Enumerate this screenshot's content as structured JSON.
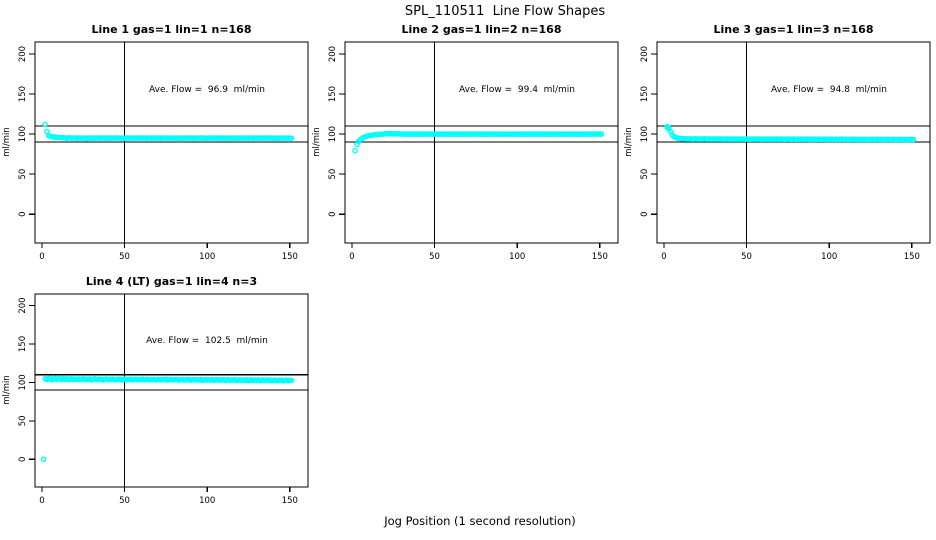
{
  "figure_title": "SPL_110511  Line Flow Shapes",
  "x_axis_label": "Jog Position (1 second resolution)",
  "y_axis_label": "ml/min",
  "colors": {
    "points": "#00ffff",
    "lines": "#000000",
    "text": "#000000",
    "background": "#ffffff"
  },
  "chart_data": [
    {
      "type": "scatter",
      "title": "Line 1 gas=1 lin=1 n=168",
      "n": 168,
      "annotation": "Ave. Flow =  96.9  ml/min",
      "ave_flow_ml_min": 96.9,
      "x_ticks": [
        0,
        50,
        100,
        150
      ],
      "y_ticks": [
        0,
        50,
        100,
        150,
        200
      ],
      "xlim": [
        -4.2,
        161
      ],
      "ylim": [
        -36,
        215
      ],
      "hlines": [
        90,
        110
      ],
      "vline": 50,
      "grid": false,
      "extra_points": [
        [
          2,
          112.2
        ],
        [
          3,
          103.2
        ]
      ],
      "series": {
        "x_start": 4,
        "x_step": 1,
        "y": [
          98.3,
          97.4,
          96.9,
          96.5,
          96.2,
          96.0,
          95.8,
          95.7,
          95.6,
          95.5,
          95.3,
          94.6,
          95.2,
          95.4,
          94.9,
          95.3,
          95.1,
          94.5,
          95.2,
          95.0,
          94.8,
          95.3,
          95.1,
          94.4,
          95.0,
          95.2,
          94.9,
          95.1,
          94.7,
          95.2,
          95.0,
          94.8,
          95.1,
          95.3,
          94.9,
          95.0,
          95.2,
          94.8,
          95.1,
          94.9,
          95.0,
          95.2,
          95.1,
          94.9,
          95.0,
          95.1,
          94.8,
          95.0,
          95.2,
          94.9,
          95.1,
          95.0,
          94.9,
          95.1,
          95.0,
          95.2,
          94.9,
          95.0,
          95.1,
          94.8,
          95.0,
          95.1,
          94.9,
          95.2,
          95.0,
          94.9,
          95.1,
          95.0,
          94.8,
          95.1,
          95.0,
          95.2,
          94.9,
          95.1,
          95.0,
          94.9,
          95.0,
          95.1,
          94.8,
          95.0,
          95.1,
          94.9,
          95.0,
          95.2,
          94.9,
          95.0,
          95.1,
          94.8,
          95.1,
          95.0,
          94.9,
          95.1,
          95.0,
          95.2,
          94.9,
          95.0,
          94.8,
          95.1,
          95.0,
          94.9,
          95.1,
          95.0,
          95.2,
          94.9,
          95.0,
          95.1,
          94.8,
          95.0,
          95.1,
          94.9,
          95.0,
          95.1,
          94.9,
          95.0,
          95.2,
          94.8,
          95.0,
          95.1,
          94.9,
          95.0,
          95.1,
          94.9,
          95.2,
          95.0,
          94.8,
          95.1,
          95.0,
          94.9,
          95.1,
          95.0,
          94.9,
          95.2,
          95.0,
          94.9,
          95.1,
          95.0,
          94.8,
          95.0,
          95.1,
          95.0,
          94.9,
          95.0,
          95.1,
          94.9,
          95.0,
          95.1,
          95.0,
          94.9
        ]
      }
    },
    {
      "type": "scatter",
      "title": "Line 2 gas=1 lin=2 n=168",
      "n": 168,
      "annotation": "Ave. Flow =  99.4  ml/min",
      "ave_flow_ml_min": 99.4,
      "x_ticks": [
        0,
        50,
        100,
        150
      ],
      "y_ticks": [
        0,
        50,
        100,
        150,
        200
      ],
      "xlim": [
        -4.2,
        161
      ],
      "ylim": [
        -36,
        215
      ],
      "hlines": [
        90,
        110
      ],
      "vline": 50,
      "grid": false,
      "extra_points": [
        [
          2,
          79.3
        ]
      ],
      "series": {
        "x_start": 3,
        "x_step": 1,
        "y": [
          87.0,
          90.6,
          92.9,
          94.5,
          95.7,
          96.6,
          97.3,
          97.9,
          98.3,
          98.7,
          99.0,
          99.2,
          99.4,
          99.6,
          99.7,
          99.8,
          99.9,
          100.4,
          100.6,
          100.7,
          100.5,
          100.6,
          100.4,
          100.2,
          100.5,
          100.3,
          100.1,
          100.2,
          100.0,
          100.1,
          99.9,
          100.1,
          100.0,
          99.8,
          100.1,
          100.0,
          100.2,
          99.9,
          100.0,
          100.1,
          99.8,
          100.0,
          100.1,
          99.9,
          100.2,
          100.0,
          99.9,
          100.1,
          100.0,
          99.8,
          100.0,
          100.1,
          99.9,
          100.0,
          100.2,
          99.8,
          100.0,
          100.1,
          99.9,
          100.0,
          100.1,
          99.9,
          100.2,
          100.0,
          99.8,
          100.1,
          100.0,
          99.9,
          100.1,
          100.0,
          99.9,
          100.2,
          100.0,
          99.9,
          100.1,
          100.0,
          99.8,
          100.0,
          100.1,
          99.9,
          100.0,
          100.2,
          99.9,
          100.0,
          100.1,
          99.8,
          100.0,
          100.1,
          99.9,
          100.0,
          100.1,
          99.9,
          100.0,
          100.1,
          99.8,
          100.0,
          100.2,
          99.9,
          100.0,
          100.1,
          99.9,
          100.0,
          100.1,
          99.8,
          100.2,
          100.0,
          99.9,
          100.1,
          100.0,
          99.9,
          100.0,
          100.1,
          99.9,
          100.2,
          100.0,
          99.8,
          100.0,
          100.1,
          99.9,
          100.0,
          100.1,
          99.9,
          100.0,
          100.2,
          99.8,
          100.0,
          100.1,
          99.9,
          100.1,
          100.0,
          99.9,
          100.0,
          100.1,
          99.8,
          100.0,
          100.2,
          99.9,
          100.0,
          100.1,
          99.9,
          100.0,
          100.1,
          99.8,
          100.0,
          100.2,
          99.9,
          100.0,
          100.1,
          100.0
        ]
      }
    },
    {
      "type": "scatter",
      "title": "Line 3 gas=1 lin=3 n=168",
      "n": 168,
      "annotation": "Ave. Flow =  94.8  ml/min",
      "ave_flow_ml_min": 94.8,
      "x_ticks": [
        0,
        50,
        100,
        150
      ],
      "y_ticks": [
        0,
        50,
        100,
        150,
        200
      ],
      "xlim": [
        -4.2,
        161
      ],
      "ylim": [
        -36,
        215
      ],
      "hlines": [
        90,
        110
      ],
      "vline": 50,
      "grid": false,
      "extra_points": [
        [
          2,
          109.5
        ],
        [
          3,
          106.3
        ]
      ],
      "series": {
        "x_start": 2,
        "x_step": 1,
        "y": [
          108.3,
          107.5,
          103.1,
          99.3,
          97.1,
          95.9,
          95.2,
          94.8,
          94.5,
          94.3,
          94.2,
          94.1,
          94.0,
          94.1,
          93.9,
          94.0,
          93.8,
          94.1,
          93.9,
          94.0,
          93.8,
          94.0,
          93.9,
          94.1,
          93.7,
          93.9,
          94.0,
          93.8,
          93.9,
          94.0,
          93.7,
          93.9,
          93.8,
          94.0,
          93.8,
          93.7,
          93.9,
          93.8,
          93.6,
          93.9,
          93.7,
          93.8,
          93.6,
          93.9,
          93.7,
          93.8,
          93.9,
          93.6,
          93.8,
          93.7,
          93.5,
          93.8,
          93.7,
          93.9,
          93.6,
          93.7,
          93.8,
          93.5,
          93.7,
          93.6,
          93.8,
          93.6,
          93.7,
          93.5,
          93.8,
          93.6,
          93.7,
          93.8,
          93.5,
          93.7,
          93.6,
          93.4,
          93.7,
          93.6,
          93.8,
          93.5,
          93.6,
          93.7,
          93.4,
          93.6,
          93.5,
          93.7,
          93.4,
          93.6,
          93.5,
          93.7,
          93.3,
          93.6,
          93.5,
          93.4,
          93.6,
          93.5,
          93.7,
          93.4,
          93.5,
          93.6,
          93.3,
          93.5,
          93.4,
          93.6,
          93.4,
          93.5,
          93.3,
          93.6,
          93.4,
          93.5,
          93.6,
          93.3,
          93.5,
          93.4,
          93.2,
          93.5,
          93.4,
          93.6,
          93.3,
          93.4,
          93.5,
          93.2,
          93.4,
          93.3,
          93.5,
          93.3,
          93.4,
          93.2,
          93.5,
          93.3,
          93.4,
          93.5,
          93.2,
          93.4,
          93.3,
          93.1,
          93.4,
          93.3,
          93.5,
          93.2,
          93.3,
          93.4,
          93.1,
          93.3,
          93.2,
          93.4,
          93.1,
          93.3,
          93.2,
          93.0,
          93.3,
          93.2,
          93.4,
          93.1
        ]
      }
    },
    {
      "type": "scatter",
      "title": "Line 4 (LT) gas=1 lin=4 n=3",
      "n": 3,
      "annotation": "Ave. Flow =  102.5  ml/min",
      "ave_flow_ml_min": 102.5,
      "x_ticks": [
        0,
        50,
        100,
        150
      ],
      "y_ticks": [
        0,
        50,
        100,
        150,
        200
      ],
      "xlim": [
        -4.2,
        161
      ],
      "ylim": [
        -36,
        215
      ],
      "hlines": [
        90,
        110
      ],
      "vline": 50,
      "grid": false,
      "extra_points": [
        [
          1,
          0
        ]
      ],
      "series": {
        "x_start": 2,
        "x_step": 1,
        "y": [
          105.0,
          103.8,
          104.9,
          105.5,
          103.4,
          104.6,
          105.2,
          103.9,
          104.4,
          105.3,
          103.6,
          104.8,
          104.1,
          105.0,
          103.5,
          104.3,
          104.9,
          103.7,
          104.5,
          103.9,
          104.7,
          103.4,
          104.2,
          104.9,
          103.6,
          104.4,
          103.8,
          104.6,
          103.3,
          104.1,
          104.8,
          103.5,
          104.3,
          103.9,
          104.5,
          103.2,
          104.0,
          104.6,
          103.4,
          104.2,
          103.8,
          104.5,
          103.3,
          104.1,
          103.7,
          104.4,
          103.1,
          103.9,
          104.3,
          103.5,
          104.1,
          103.8,
          104.4,
          103.2,
          103.9,
          104.2,
          103.4,
          104.0,
          103.6,
          104.3,
          103.1,
          103.8,
          104.2,
          103.4,
          103.9,
          103.5,
          104.1,
          103.2,
          103.8,
          104.0,
          103.3,
          103.9,
          103.6,
          104.2,
          103.0,
          103.7,
          104.0,
          103.3,
          103.8,
          103.5,
          104.1,
          102.9,
          103.6,
          103.9,
          103.2,
          103.7,
          103.4,
          104.0,
          102.8,
          103.5,
          103.8,
          103.1,
          103.6,
          103.3,
          103.9,
          102.7,
          103.4,
          103.7,
          103.0,
          103.5,
          103.2,
          103.8,
          102.6,
          103.3,
          103.6,
          102.9,
          103.4,
          103.1,
          103.7,
          102.5,
          103.2,
          103.5,
          102.8,
          103.3,
          103.0,
          103.6,
          102.4,
          103.1,
          103.4,
          102.7,
          103.2,
          102.9,
          103.5,
          102.3,
          103.0,
          103.3,
          102.6,
          103.1,
          102.8,
          103.4,
          102.2,
          102.9,
          103.2,
          102.5,
          103.0,
          102.7,
          103.3,
          102.1,
          102.8,
          103.1,
          102.4,
          102.9,
          102.6,
          103.2,
          102.0,
          102.7,
          103.0,
          102.3,
          102.8,
          102.5
        ]
      }
    }
  ]
}
